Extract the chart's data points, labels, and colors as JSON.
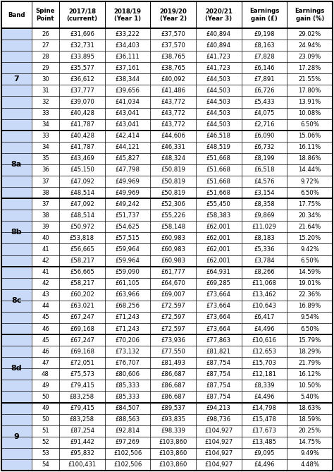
{
  "headers": [
    "Band",
    "Spine\nPoint",
    "2017/18\n(current)",
    "2018/19\n(Year 1)",
    "2019/20\n(Year 2)",
    "2020/21\n(Year 3)",
    "Earnings\ngain (£)",
    "Earnings\ngain (%)"
  ],
  "bands": [
    {
      "name": "7",
      "rows": [
        [
          "26",
          "£31,696",
          "£33,222",
          "£37,570",
          "£40,894",
          "£9,198",
          "29.02%"
        ],
        [
          "27",
          "£32,731",
          "£34,403",
          "£37,570",
          "£40,894",
          "£8,163",
          "24.94%"
        ],
        [
          "28",
          "£33,895",
          "£36,111",
          "£38,765",
          "£41,723",
          "£7,828",
          "23.09%"
        ],
        [
          "29",
          "£35,577",
          "£37,161",
          "£38,765",
          "£41,723",
          "£6,146",
          "17.28%"
        ],
        [
          "30",
          "£36,612",
          "£38,344",
          "£40,092",
          "£44,503",
          "£7,891",
          "21.55%"
        ],
        [
          "31",
          "£37,777",
          "£39,656",
          "£41,486",
          "£44,503",
          "£6,726",
          "17.80%"
        ],
        [
          "32",
          "£39,070",
          "£41,034",
          "£43,772",
          "£44,503",
          "£5,433",
          "13.91%"
        ],
        [
          "33",
          "£40,428",
          "£43,041",
          "£43,772",
          "£44,503",
          "£4,075",
          "10.08%"
        ],
        [
          "34",
          "£41,787",
          "£43,041",
          "£43,772",
          "£44,503",
          "£2,716",
          "6.50%"
        ]
      ]
    },
    {
      "name": "8a",
      "rows": [
        [
          "33",
          "£40,428",
          "£42,414",
          "£44,606",
          "£46,518",
          "£6,090",
          "15.06%"
        ],
        [
          "34",
          "£41,787",
          "£44,121",
          "£46,331",
          "£48,519",
          "£6,732",
          "16.11%"
        ],
        [
          "35",
          "£43,469",
          "£45,827",
          "£48,324",
          "£51,668",
          "£8,199",
          "18.86%"
        ],
        [
          "36",
          "£45,150",
          "£47,798",
          "£50,819",
          "£51,668",
          "£6,518",
          "14.44%"
        ],
        [
          "37",
          "£47,092",
          "£49,969",
          "£50,819",
          "£51,668",
          "£4,576",
          "9.72%"
        ],
        [
          "38",
          "£48,514",
          "£49,969",
          "£50,819",
          "£51,668",
          "£3,154",
          "6.50%"
        ]
      ]
    },
    {
      "name": "8b",
      "rows": [
        [
          "37",
          "£47,092",
          "£49,242",
          "£52,306",
          "£55,450",
          "£8,358",
          "17.75%"
        ],
        [
          "38",
          "£48,514",
          "£51,737",
          "£55,226",
          "£58,383",
          "£9,869",
          "20.34%"
        ],
        [
          "39",
          "£50,972",
          "£54,625",
          "£58,148",
          "£62,001",
          "£11,029",
          "21.64%"
        ],
        [
          "40",
          "£53,818",
          "£57,515",
          "£60,983",
          "£62,001",
          "£8,183",
          "15.20%"
        ],
        [
          "41",
          "£56,665",
          "£59,964",
          "£60,983",
          "£62,001",
          "£5,336",
          "9.42%"
        ],
        [
          "42",
          "£58,217",
          "£59,964",
          "£60,983",
          "£62,001",
          "£3,784",
          "6.50%"
        ]
      ]
    },
    {
      "name": "8c",
      "rows": [
        [
          "41",
          "£56,665",
          "£59,090",
          "£61,777",
          "£64,931",
          "£8,266",
          "14.59%"
        ],
        [
          "42",
          "£58,217",
          "£61,105",
          "£64,670",
          "£69,285",
          "£11,068",
          "19.01%"
        ],
        [
          "43",
          "£60,202",
          "£63,966",
          "£69,007",
          "£73,664",
          "£13,462",
          "22.36%"
        ],
        [
          "44",
          "£63,021",
          "£68,256",
          "£72,597",
          "£73,664",
          "£10,643",
          "16.89%"
        ],
        [
          "45",
          "£67,247",
          "£71,243",
          "£72,597",
          "£73,664",
          "£6,417",
          "9.54%"
        ],
        [
          "46",
          "£69,168",
          "£71,243",
          "£72,597",
          "£73,664",
          "£4,496",
          "6.50%"
        ]
      ]
    },
    {
      "name": "8d",
      "rows": [
        [
          "45",
          "£67,247",
          "£70,206",
          "£73,936",
          "£77,863",
          "£10,616",
          "15.79%"
        ],
        [
          "46",
          "£69,168",
          "£73,132",
          "£77,550",
          "£81,821",
          "£12,653",
          "18.29%"
        ],
        [
          "47",
          "£72,051",
          "£76,707",
          "£81,493",
          "£87,754",
          "£15,703",
          "21.79%"
        ],
        [
          "48",
          "£75,573",
          "£80,606",
          "£86,687",
          "£87,754",
          "£12,181",
          "16.12%"
        ],
        [
          "49",
          "£79,415",
          "£85,333",
          "£86,687",
          "£87,754",
          "£8,339",
          "10.50%"
        ],
        [
          "50",
          "£83,258",
          "£85,333",
          "£86,687",
          "£87,754",
          "£4,496",
          "5.40%"
        ]
      ]
    },
    {
      "name": "9",
      "rows": [
        [
          "49",
          "£79,415",
          "£84,507",
          "£89,537",
          "£94,213",
          "£14,798",
          "18.63%"
        ],
        [
          "50",
          "£83,258",
          "£88,563",
          "£93,835",
          "£98,736",
          "£15,478",
          "18.59%"
        ],
        [
          "51",
          "£87,254",
          "£92,814",
          "£98,339",
          "£104,927",
          "£17,673",
          "20.25%"
        ],
        [
          "52",
          "£91,442",
          "£97,269",
          "£103,860",
          "£104,927",
          "£13,485",
          "14.75%"
        ],
        [
          "53",
          "£95,832",
          "£102,506",
          "£103,860",
          "£104,927",
          "£9,095",
          "9.49%"
        ],
        [
          "54",
          "£100,431",
          "£102,506",
          "£103,860",
          "£104,927",
          "£4,496",
          "4.48%"
        ]
      ]
    }
  ],
  "band_bg": "#c9daf8",
  "border_color": "#000000",
  "figsize": [
    4.74,
    6.69
  ],
  "dpi": 100
}
